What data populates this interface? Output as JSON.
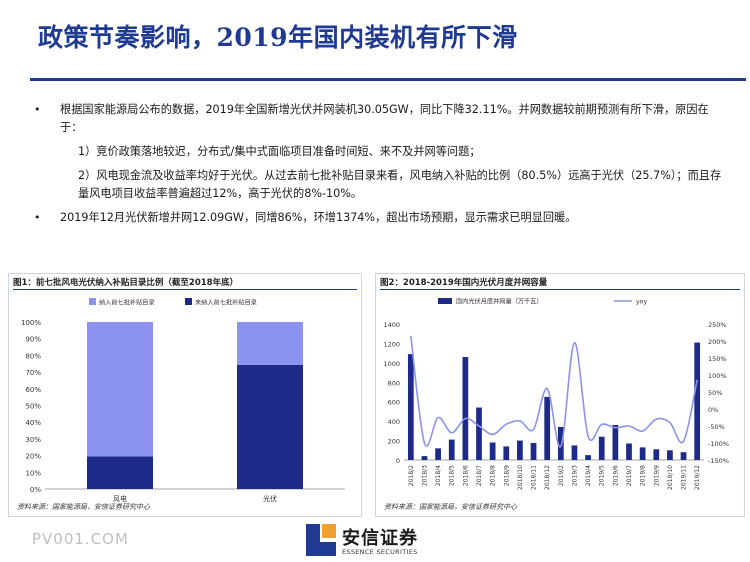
{
  "title": "政策节奏影响，2019年国内装机有所下滑",
  "bullets": {
    "b1": "根据国家能源局公布的数据，2019年全国新增光伏并网装机30.05GW，同比下降32.11%。并网数据较前期预测有所下滑，原因在于：",
    "s1": "1）竞价政策落地较迟，分布式/集中式面临项目准备时间短、来不及并网等问题；",
    "s2": "2）风电现金流及收益率均好于光伏。从过去前七批补贴目录来看，风电纳入补贴的比例（80.5%）远高于光伏（25.7%）；而且存量风电项目收益率普遍超过12%，高于光伏的8%-10%。",
    "b2": "2019年12月光伏新增并网12.09GW，同增86%，环增1374%，超出市场预期，显示需求已明显回暖。",
    "dot": "•"
  },
  "fig1": {
    "title": "图1：前七批风电光伏纳入补贴目录比例（截至2018年底）",
    "source": "资料来源：国家能源局，安信证券研究中心"
  },
  "fig2": {
    "title": "图2：2018-2019年国内光伏月度并网容量",
    "source": "资料来源：国家能源局，安信证券研究中心"
  },
  "chart_data": [
    {
      "type": "bar",
      "stacked": true,
      "categories": [
        "风电",
        "光伏"
      ],
      "series": [
        {
          "name": "未纳入前七批补贴目录",
          "values": [
            19.5,
            74.3
          ],
          "color": "#1d2a88"
        },
        {
          "name": "纳入前七批补贴目录",
          "values": [
            80.5,
            25.7
          ],
          "color": "#8c93ee"
        }
      ],
      "ylim": [
        0,
        100
      ],
      "yticks": [
        "0%",
        "10%",
        "20%",
        "30%",
        "40%",
        "50%",
        "60%",
        "70%",
        "80%",
        "90%",
        "100%"
      ],
      "legend": "top"
    },
    {
      "type": "bar+line",
      "categories": [
        "2018/2",
        "2018/3",
        "2018/4",
        "2018/5",
        "2018/6",
        "2018/7",
        "2018/8",
        "2018/9",
        "2018/10",
        "2018/11",
        "2018/12",
        "2019/2",
        "2019/3",
        "2019/4",
        "2019/5",
        "2019/6",
        "2019/7",
        "2019/8",
        "2019/9",
        "2019/10",
        "2019/11",
        "2019/12"
      ],
      "series": [
        {
          "name": "国内光伏月度并网量（万千瓦）",
          "values": [
            1090,
            40,
            120,
            210,
            1060,
            540,
            180,
            140,
            200,
            175,
            650,
            340,
            150,
            50,
            240,
            360,
            170,
            130,
            110,
            100,
            80,
            1209
          ],
          "color": "#1d2a88",
          "axis": "left"
        },
        {
          "name": "yoy",
          "values": [
            215,
            -100,
            -25,
            -70,
            -28,
            -50,
            -75,
            -45,
            -35,
            -60,
            60,
            -110,
            195,
            -80,
            -45,
            -55,
            -50,
            -65,
            -30,
            -40,
            -95,
            86
          ],
          "color": "#8c93ee",
          "axis": "right"
        }
      ],
      "ylim_left": [
        0,
        1400
      ],
      "yticks_left": [
        "0",
        "200",
        "400",
        "600",
        "800",
        "1000",
        "1200",
        "1400"
      ],
      "ylim_right": [
        -150,
        250
      ],
      "yticks_right": [
        "-150%",
        "-100%",
        "-50%",
        "0%",
        "50%",
        "100%",
        "150%",
        "200%",
        "250%"
      ],
      "legend": "top"
    }
  ],
  "watermark": "PV001.COM",
  "logo": {
    "name": "安信证券",
    "sub": "ESSENCE SECURITIES",
    "color": "#1f3a93"
  }
}
